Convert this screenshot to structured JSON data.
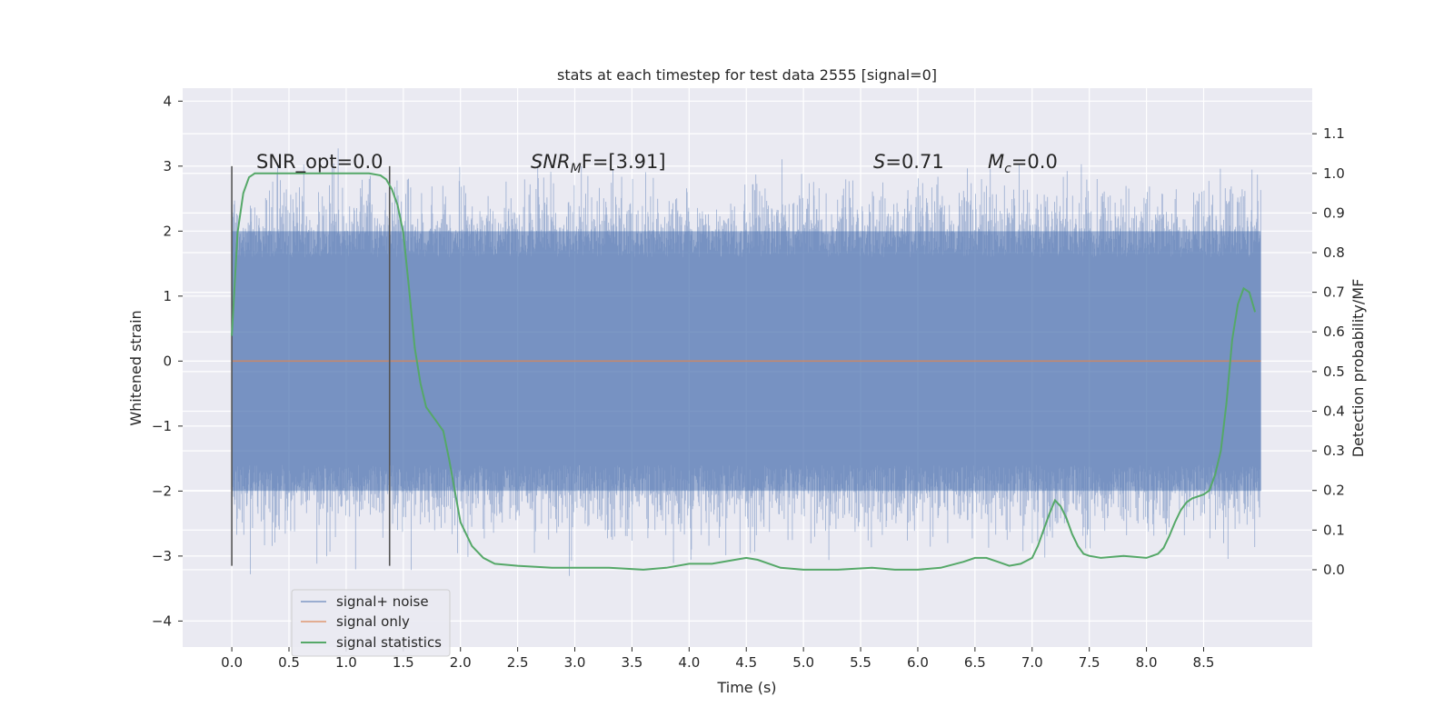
{
  "chart_data": {
    "type": "line",
    "title": "stats at each timestep for test data 2555 [signal=0]",
    "xlabel": "Time (s)",
    "ylabel": "Whitened strain",
    "y2label": "Detection probability/MF",
    "xlim": [
      -0.43,
      9.45
    ],
    "ylim": [
      -4.4,
      4.2
    ],
    "y2lim": [
      -0.195,
      1.215
    ],
    "x_ticks": [
      "0.0",
      "0.5",
      "1.0",
      "1.5",
      "2.0",
      "2.5",
      "3.0",
      "3.5",
      "4.0",
      "4.5",
      "5.0",
      "5.5",
      "6.0",
      "6.5",
      "7.0",
      "7.5",
      "8.0",
      "8.5"
    ],
    "y_ticks": [
      "4",
      "3",
      "2",
      "1",
      "0",
      "−1",
      "−2",
      "−3",
      "−4"
    ],
    "y2_ticks": [
      "1.1",
      "1.0",
      "0.9",
      "0.8",
      "0.7",
      "0.6",
      "0.5",
      "0.4",
      "0.3",
      "0.2",
      "0.1",
      "0.0"
    ],
    "grid": true,
    "legend_position": "lower-left",
    "colors": {
      "background": "#eaeaf2",
      "noise": "#4c72b0",
      "signal_only": "#dd8452",
      "statistics": "#55a868",
      "marker_line": "#555555"
    },
    "series": [
      {
        "name": "signal+ noise",
        "x_range": [
          0.0,
          9.0
        ],
        "envelope_upper": 2.0,
        "envelope_lower": -2.0,
        "max_value": 3.85,
        "min_value": -4.0
      },
      {
        "name": "signal only",
        "x": [
          0.0,
          9.0
        ],
        "y": [
          0.0,
          0.0
        ]
      },
      {
        "name": "signal statistics",
        "axis": "right",
        "x": [
          0.0,
          0.05,
          0.1,
          0.15,
          0.2,
          0.3,
          0.4,
          0.5,
          0.6,
          0.8,
          1.0,
          1.2,
          1.3,
          1.35,
          1.4,
          1.45,
          1.5,
          1.55,
          1.6,
          1.65,
          1.7,
          1.75,
          1.8,
          1.85,
          1.9,
          2.0,
          2.1,
          2.2,
          2.3,
          2.5,
          2.8,
          3.0,
          3.3,
          3.6,
          3.8,
          4.0,
          4.2,
          4.4,
          4.5,
          4.6,
          4.8,
          5.0,
          5.3,
          5.6,
          5.8,
          6.0,
          6.2,
          6.4,
          6.5,
          6.6,
          6.7,
          6.8,
          6.9,
          7.0,
          7.05,
          7.1,
          7.15,
          7.2,
          7.25,
          7.3,
          7.35,
          7.4,
          7.45,
          7.5,
          7.6,
          7.8,
          8.0,
          8.05,
          8.1,
          8.15,
          8.2,
          8.25,
          8.3,
          8.35,
          8.4,
          8.45,
          8.5,
          8.55,
          8.6,
          8.65,
          8.7,
          8.75,
          8.8,
          8.85,
          8.9,
          8.95
        ],
        "y": [
          0.59,
          0.85,
          0.95,
          0.99,
          1.0,
          1.0,
          1.0,
          1.0,
          1.0,
          1.0,
          1.0,
          1.0,
          0.995,
          0.985,
          0.96,
          0.92,
          0.85,
          0.71,
          0.56,
          0.47,
          0.41,
          0.39,
          0.37,
          0.35,
          0.28,
          0.12,
          0.06,
          0.03,
          0.015,
          0.01,
          0.005,
          0.005,
          0.005,
          0.0,
          0.005,
          0.015,
          0.015,
          0.025,
          0.03,
          0.025,
          0.005,
          0.0,
          0.0,
          0.005,
          0.0,
          0.0,
          0.005,
          0.02,
          0.03,
          0.03,
          0.02,
          0.01,
          0.015,
          0.03,
          0.06,
          0.1,
          0.14,
          0.175,
          0.16,
          0.13,
          0.09,
          0.06,
          0.04,
          0.035,
          0.03,
          0.035,
          0.03,
          0.035,
          0.04,
          0.055,
          0.085,
          0.12,
          0.15,
          0.17,
          0.18,
          0.185,
          0.19,
          0.2,
          0.24,
          0.3,
          0.42,
          0.58,
          0.67,
          0.71,
          0.7,
          0.65
        ]
      }
    ],
    "vertical_markers": [
      0.0,
      1.38
    ],
    "annotations": [
      {
        "prefix": "SNR_opt=0.0",
        "sub": "",
        "suffix": ""
      },
      {
        "prefix": "SNR",
        "sub": "M",
        "suffix": "F=[3.91]"
      },
      {
        "prefix": "S",
        "sub": "",
        "suffix": "=0.71"
      },
      {
        "prefix": "M",
        "sub": "c",
        "suffix": "=0.0"
      }
    ]
  }
}
